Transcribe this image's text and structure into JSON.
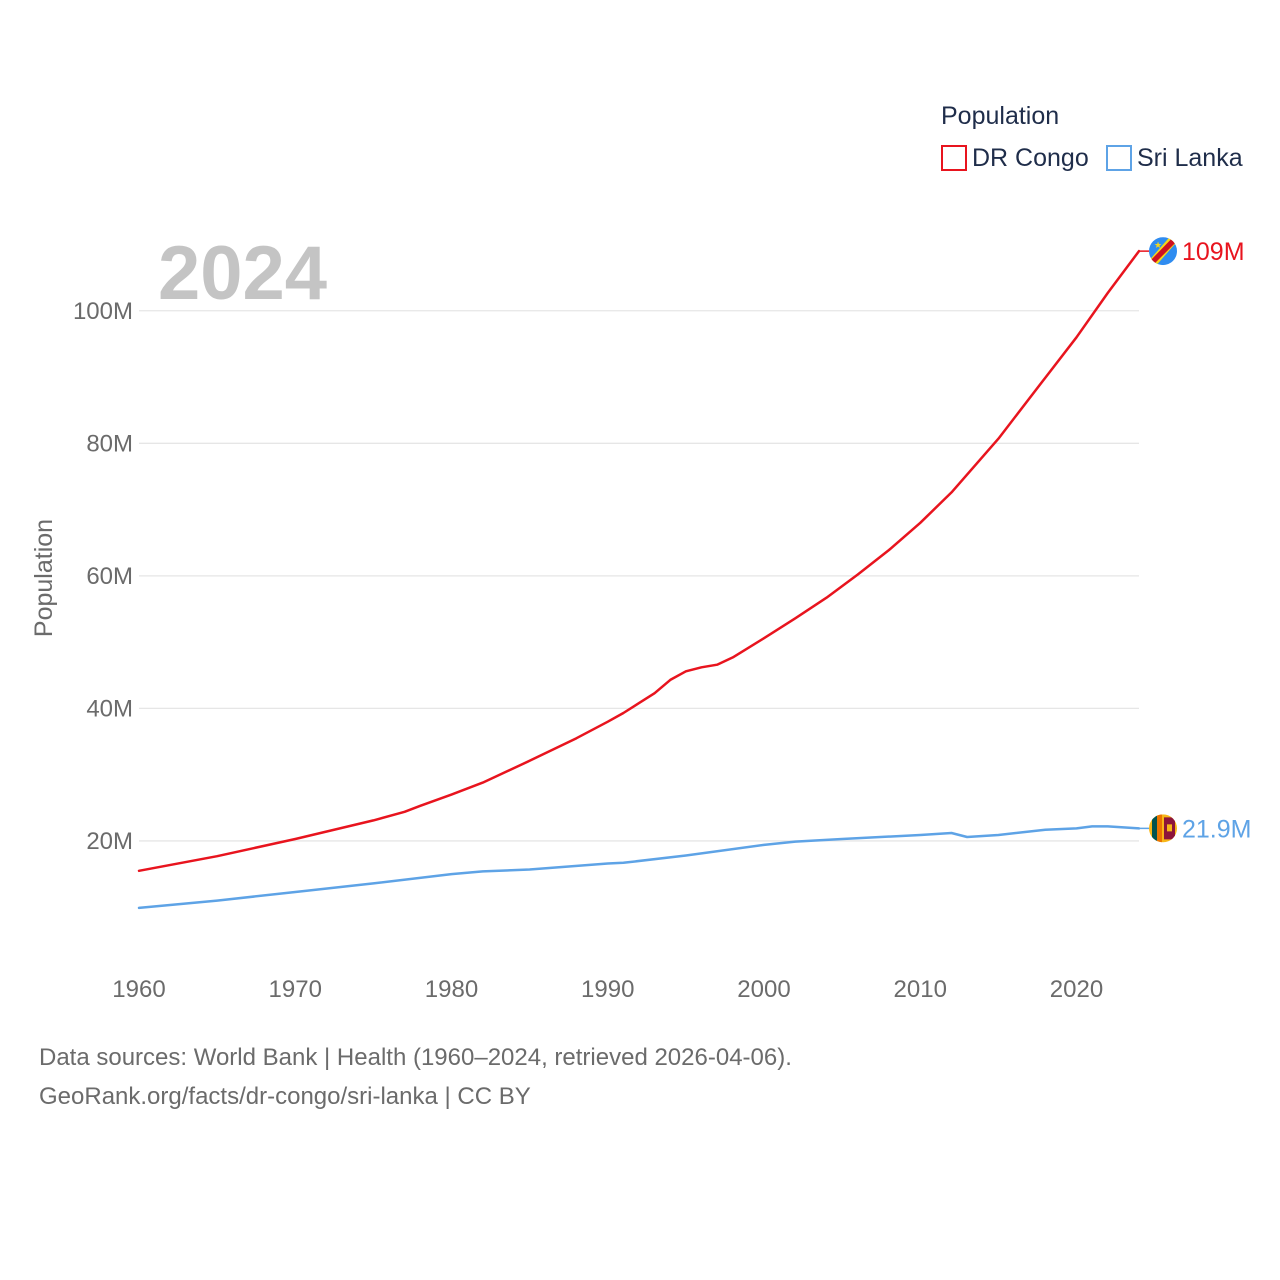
{
  "legend": {
    "title": "Population",
    "items": [
      {
        "label": "DR Congo",
        "color": "#e8141e"
      },
      {
        "label": "Sri Lanka",
        "color": "#5ea3e6"
      }
    ]
  },
  "year_label": "2024",
  "source": {
    "line1": "Data sources: World Bank | Health (1960–2024, retrieved 2026-04-06).",
    "line2": "GeoRank.org/facts/dr-congo/sri-lanka | CC BY"
  },
  "chart_data": {
    "type": "line",
    "title": "",
    "xlabel": "",
    "ylabel": "Population",
    "xlim": [
      1960,
      2024
    ],
    "ylim": [
      0,
      110000000
    ],
    "x_ticks": [
      {
        "value": 1960,
        "label": "1960"
      },
      {
        "value": 1970,
        "label": "1970"
      },
      {
        "value": 1980,
        "label": "1980"
      },
      {
        "value": 1990,
        "label": "1990"
      },
      {
        "value": 2000,
        "label": "2000"
      },
      {
        "value": 2010,
        "label": "2010"
      },
      {
        "value": 2020,
        "label": "2020"
      }
    ],
    "y_ticks": [
      {
        "value": 20000000,
        "label": "20M"
      },
      {
        "value": 40000000,
        "label": "40M"
      },
      {
        "value": 60000000,
        "label": "60M"
      },
      {
        "value": 80000000,
        "label": "80M"
      },
      {
        "value": 100000000,
        "label": "100M"
      }
    ],
    "series": [
      {
        "name": "DR Congo",
        "color": "#e8141e",
        "end_label": "109M",
        "flag_icon": "dr-congo-flag-icon",
        "x": [
          1960,
          1965,
          1970,
          1975,
          1977,
          1978,
          1980,
          1982,
          1985,
          1988,
          1990,
          1991,
          1992,
          1993,
          1994,
          1995,
          1996,
          1997,
          1998,
          2000,
          2002,
          2004,
          2006,
          2008,
          2010,
          2012,
          2015,
          2018,
          2020,
          2022,
          2024
        ],
        "values": [
          15500000,
          17700000,
          20300000,
          23100000,
          24400000,
          25300000,
          27000000,
          28800000,
          32100000,
          35500000,
          38000000,
          39300000,
          40800000,
          42300000,
          44300000,
          45600000,
          46200000,
          46600000,
          47700000,
          50600000,
          53600000,
          56700000,
          60200000,
          63900000,
          68000000,
          72600000,
          80700000,
          89900000,
          96000000,
          102700000,
          109000000
        ]
      },
      {
        "name": "Sri Lanka",
        "color": "#5ea3e6",
        "end_label": "21.9M",
        "flag_icon": "sri-lanka-flag-icon",
        "x": [
          1960,
          1965,
          1970,
          1975,
          1980,
          1982,
          1985,
          1990,
          1991,
          1995,
          2000,
          2002,
          2005,
          2010,
          2012,
          2013,
          2015,
          2018,
          2020,
          2021,
          2022,
          2024
        ],
        "values": [
          9900000,
          11000000,
          12300000,
          13600000,
          15000000,
          15400000,
          15700000,
          16600000,
          16700000,
          17800000,
          19400000,
          19900000,
          20300000,
          20900000,
          21200000,
          20600000,
          20900000,
          21700000,
          21900000,
          22200000,
          22200000,
          21900000
        ]
      }
    ]
  }
}
